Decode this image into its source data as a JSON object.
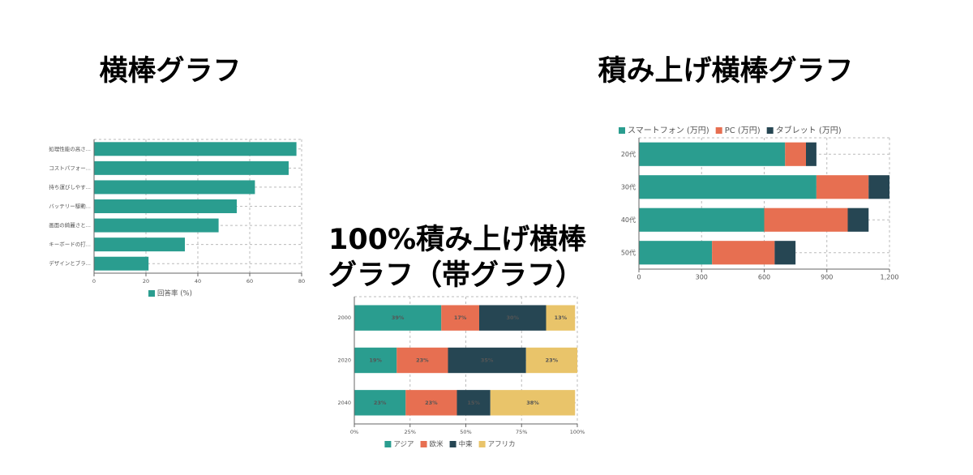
{
  "chart_data": [
    {
      "type": "bar",
      "orientation": "horizontal",
      "stacked": false,
      "title": "横棒グラフ",
      "categories": [
        "処理性能の高さ...",
        "コストパフォー...",
        "持ち運びしやす...",
        "バッテリー駆動...",
        "画面の綺麗さと...",
        "キーボードの打...",
        "デザインとブラ..."
      ],
      "series": [
        {
          "name": "回答率 (%)",
          "color": "#2a9d8f",
          "values": [
            78,
            75,
            62,
            55,
            48,
            35,
            21
          ]
        }
      ],
      "xlim": [
        0,
        80
      ],
      "xticks": [
        0,
        20,
        40,
        60,
        80
      ],
      "grid": true,
      "legend": "bottom"
    },
    {
      "type": "bar",
      "orientation": "horizontal",
      "stacked": true,
      "title": "100%積み上げ横棒グラフ（帯グラフ）",
      "categories": [
        "2000",
        "2020",
        "2040"
      ],
      "series": [
        {
          "name": "アジア",
          "color": "#2a9d8f",
          "values": [
            39,
            19,
            23
          ],
          "value_labels": [
            "39%",
            "19%",
            "23%"
          ]
        },
        {
          "name": "欧米",
          "color": "#e76f51",
          "values": [
            17,
            23,
            23
          ],
          "value_labels": [
            "17%",
            "23%",
            "23%"
          ]
        },
        {
          "name": "中東",
          "color": "#264653",
          "values": [
            30,
            35,
            15
          ],
          "value_labels": [
            "30%",
            "35%",
            "15%"
          ]
        },
        {
          "name": "アフリカ",
          "color": "#e9c46a",
          "values": [
            13,
            23,
            38
          ],
          "value_labels": [
            "13%",
            "23%",
            "38%"
          ]
        }
      ],
      "xlim": [
        0,
        100
      ],
      "xticks": [
        {
          "value": 0,
          "label": "0%"
        },
        {
          "value": 25,
          "label": "25%"
        },
        {
          "value": 50,
          "label": "50%"
        },
        {
          "value": 75,
          "label": "75%"
        },
        {
          "value": 100,
          "label": "100%"
        }
      ],
      "grid": true,
      "legend": "bottom"
    },
    {
      "type": "bar",
      "orientation": "horizontal",
      "stacked": true,
      "title": "積み上げ横棒グラフ",
      "categories": [
        "20代",
        "30代",
        "40代",
        "50代"
      ],
      "series": [
        {
          "name": "スマートフォン (万円)",
          "color": "#2a9d8f",
          "values": [
            700,
            850,
            600,
            350
          ]
        },
        {
          "name": "PC (万円)",
          "color": "#e76f51",
          "values": [
            100,
            250,
            400,
            300
          ]
        },
        {
          "name": "タブレット (万円)",
          "color": "#264653",
          "values": [
            50,
            100,
            100,
            100
          ]
        }
      ],
      "xlim": [
        0,
        1200
      ],
      "xticks": [
        0,
        300,
        600,
        900,
        {
          "value": 1200,
          "label": "1,200"
        }
      ],
      "grid": true,
      "legend": "top"
    }
  ]
}
